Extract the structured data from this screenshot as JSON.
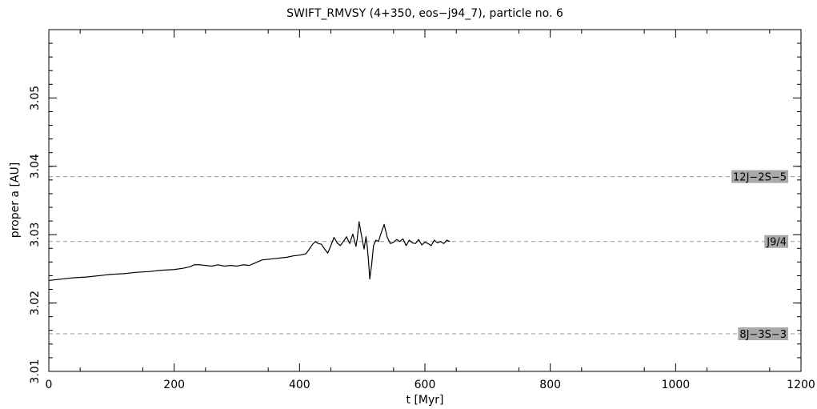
{
  "chart_data": {
    "type": "line",
    "title": "SWIFT_RMVSY (4+350, eos−j94_7), particle no. 6",
    "xlabel": "t [Myr]",
    "ylabel": "proper a [AU]",
    "xlim": [
      0,
      1200
    ],
    "ylim": [
      3.01,
      3.06
    ],
    "x_ticks": [
      "0",
      "200",
      "400",
      "600",
      "800",
      "1000",
      "1200"
    ],
    "y_ticks": [
      "3.01",
      "3.02",
      "3.03",
      "3.04",
      "3.05"
    ],
    "grid": false,
    "resonances": [
      {
        "name": "12J−2S−5",
        "a": 3.0385
      },
      {
        "name": "J9/4",
        "a": 3.029
      },
      {
        "name": "8J−3S−3",
        "a": 3.0155
      }
    ],
    "series": [
      {
        "x": [
          0,
          20,
          40,
          60,
          80,
          100,
          120,
          140,
          160,
          180,
          200,
          215,
          225,
          232,
          240,
          250,
          260,
          270,
          280,
          290,
          300,
          310,
          320,
          330,
          340,
          350,
          360,
          370,
          380,
          390,
          400,
          410,
          415,
          420,
          425,
          430,
          435,
          440,
          445,
          450,
          455,
          460,
          465,
          470,
          475,
          480,
          485,
          490,
          492,
          495,
          500,
          503,
          506,
          508,
          510,
          512,
          515,
          518,
          522,
          526,
          530,
          535,
          540,
          545,
          550,
          555,
          560,
          565,
          570,
          575,
          580,
          585,
          590,
          595,
          600,
          605,
          610,
          615,
          620,
          625,
          630,
          635,
          640
        ],
        "y": [
          3.0233,
          3.0235,
          3.0237,
          3.0238,
          3.024,
          3.0242,
          3.0243,
          3.0245,
          3.0246,
          3.0248,
          3.0249,
          3.0251,
          3.0253,
          3.0256,
          3.0256,
          3.0255,
          3.0254,
          3.0256,
          3.0254,
          3.0255,
          3.0254,
          3.0256,
          3.0255,
          3.0259,
          3.0263,
          3.0264,
          3.0265,
          3.0266,
          3.0267,
          3.0269,
          3.027,
          3.0272,
          3.0278,
          3.0285,
          3.029,
          3.0287,
          3.0286,
          3.0279,
          3.0273,
          3.0284,
          3.0296,
          3.0288,
          3.0284,
          3.029,
          3.0297,
          3.0287,
          3.0301,
          3.0283,
          3.0294,
          3.0319,
          3.0293,
          3.0279,
          3.0297,
          3.0283,
          3.0262,
          3.0235,
          3.0256,
          3.0284,
          3.0292,
          3.029,
          3.0302,
          3.0315,
          3.0296,
          3.0287,
          3.0289,
          3.0293,
          3.029,
          3.0294,
          3.0284,
          3.0292,
          3.0288,
          3.0287,
          3.0293,
          3.0285,
          3.0289,
          3.0287,
          3.0284,
          3.0292,
          3.0288,
          3.029,
          3.0287,
          3.0292,
          3.029
        ]
      }
    ]
  }
}
